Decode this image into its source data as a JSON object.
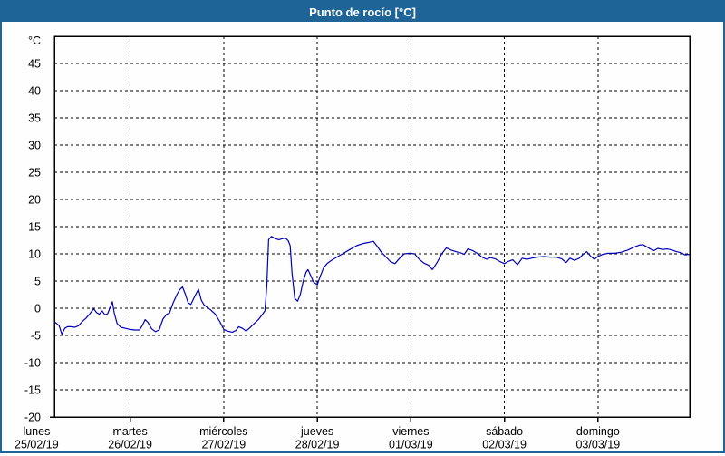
{
  "window": {
    "title": "Punto de rocío [°C]"
  },
  "colors": {
    "titlebar_bg": "#1e6496",
    "titlebar_text": "#ffffff",
    "outer_border": "#1e6496",
    "chart_bg": "#fdfefd",
    "plot_border": "#000000",
    "grid": "#000000",
    "line": "#0000bb",
    "label_text": "#000000"
  },
  "chart_data": {
    "type": "line",
    "title": "Punto de rocío [°C]",
    "y_unit_label": "°C",
    "ylabel": "",
    "xlabel": "",
    "ylim": [
      -20,
      50
    ],
    "y_gridline_step": 5,
    "y_tick_labels": [
      45,
      40,
      35,
      30,
      25,
      20,
      15,
      10,
      5,
      0,
      -5,
      -10,
      -15,
      -20
    ],
    "grid": "dashed",
    "legend_position": "none",
    "xlim_days": [
      0.19,
      6.98
    ],
    "x_gridlines_days": [
      1,
      2,
      3,
      4,
      5,
      6
    ],
    "x_day_labels": [
      {
        "name": "lunes",
        "date": "25/02/19",
        "day": 0
      },
      {
        "name": "martes",
        "date": "26/02/19",
        "day": 1
      },
      {
        "name": "miércoles",
        "date": "27/02/19",
        "day": 2
      },
      {
        "name": "jueves",
        "date": "28/02/19",
        "day": 3
      },
      {
        "name": "viernes",
        "date": "01/03/19",
        "day": 4
      },
      {
        "name": "sábado",
        "date": "02/03/19",
        "day": 5
      },
      {
        "name": "domingo",
        "date": "03/03/19",
        "day": 6
      }
    ],
    "series": [
      {
        "name": "Punto de rocío",
        "color": "#0000bb",
        "points": [
          [
            0.2,
            -2.6
          ],
          [
            0.24,
            -3.2
          ],
          [
            0.27,
            -4.8
          ],
          [
            0.3,
            -3.7
          ],
          [
            0.33,
            -3.4
          ],
          [
            0.37,
            -3.4
          ],
          [
            0.41,
            -3.5
          ],
          [
            0.45,
            -3.2
          ],
          [
            0.49,
            -2.4
          ],
          [
            0.53,
            -1.8
          ],
          [
            0.57,
            -1.0
          ],
          [
            0.61,
            -0.1
          ],
          [
            0.64,
            -0.8
          ],
          [
            0.67,
            -1.1
          ],
          [
            0.7,
            -0.5
          ],
          [
            0.73,
            -1.2
          ],
          [
            0.76,
            -1.0
          ],
          [
            0.79,
            0.3
          ],
          [
            0.81,
            1.2
          ],
          [
            0.83,
            -0.9
          ],
          [
            0.86,
            -2.8
          ],
          [
            0.9,
            -3.5
          ],
          [
            0.95,
            -3.7
          ],
          [
            1.0,
            -3.9
          ],
          [
            1.05,
            -4.0
          ],
          [
            1.1,
            -4.0
          ],
          [
            1.13,
            -3.2
          ],
          [
            1.16,
            -2.1
          ],
          [
            1.19,
            -2.6
          ],
          [
            1.23,
            -3.8
          ],
          [
            1.27,
            -4.3
          ],
          [
            1.31,
            -4.0
          ],
          [
            1.35,
            -2.0
          ],
          [
            1.39,
            -1.1
          ],
          [
            1.42,
            -0.9
          ],
          [
            1.46,
            1.0
          ],
          [
            1.5,
            2.5
          ],
          [
            1.53,
            3.4
          ],
          [
            1.56,
            3.9
          ],
          [
            1.59,
            2.6
          ],
          [
            1.62,
            1.0
          ],
          [
            1.65,
            0.7
          ],
          [
            1.69,
            2.2
          ],
          [
            1.73,
            3.5
          ],
          [
            1.76,
            1.5
          ],
          [
            1.79,
            0.6
          ],
          [
            1.82,
            0.2
          ],
          [
            1.86,
            -0.3
          ],
          [
            1.91,
            -1.1
          ],
          [
            1.96,
            -2.5
          ],
          [
            2.0,
            -3.9
          ],
          [
            2.04,
            -4.2
          ],
          [
            2.09,
            -4.4
          ],
          [
            2.13,
            -4.1
          ],
          [
            2.16,
            -3.4
          ],
          [
            2.2,
            -3.7
          ],
          [
            2.24,
            -4.2
          ],
          [
            2.28,
            -3.6
          ],
          [
            2.32,
            -2.9
          ],
          [
            2.37,
            -2.1
          ],
          [
            2.41,
            -1.2
          ],
          [
            2.44,
            -0.5
          ],
          [
            2.46,
            4.0
          ],
          [
            2.48,
            12.6
          ],
          [
            2.51,
            13.2
          ],
          [
            2.55,
            12.8
          ],
          [
            2.59,
            12.6
          ],
          [
            2.63,
            12.8
          ],
          [
            2.66,
            12.9
          ],
          [
            2.69,
            12.4
          ],
          [
            2.71,
            11.5
          ],
          [
            2.73,
            6.5
          ],
          [
            2.76,
            1.8
          ],
          [
            2.79,
            1.3
          ],
          [
            2.82,
            2.6
          ],
          [
            2.85,
            5.0
          ],
          [
            2.88,
            6.6
          ],
          [
            2.9,
            7.1
          ],
          [
            2.93,
            6.0
          ],
          [
            2.96,
            4.8
          ],
          [
            3.0,
            4.3
          ],
          [
            3.03,
            5.8
          ],
          [
            3.07,
            7.5
          ],
          [
            3.11,
            8.3
          ],
          [
            3.16,
            8.9
          ],
          [
            3.22,
            9.5
          ],
          [
            3.28,
            10.1
          ],
          [
            3.35,
            10.8
          ],
          [
            3.42,
            11.5
          ],
          [
            3.49,
            11.9
          ],
          [
            3.55,
            12.1
          ],
          [
            3.6,
            12.3
          ],
          [
            3.64,
            11.4
          ],
          [
            3.68,
            10.4
          ],
          [
            3.73,
            9.5
          ],
          [
            3.78,
            8.6
          ],
          [
            3.83,
            8.2
          ],
          [
            3.88,
            9.2
          ],
          [
            3.93,
            10.0
          ],
          [
            3.99,
            10.1
          ],
          [
            4.04,
            10.0
          ],
          [
            4.09,
            9.0
          ],
          [
            4.14,
            8.3
          ],
          [
            4.19,
            7.9
          ],
          [
            4.23,
            7.1
          ],
          [
            4.28,
            8.4
          ],
          [
            4.33,
            10.0
          ],
          [
            4.38,
            11.1
          ],
          [
            4.43,
            10.7
          ],
          [
            4.48,
            10.4
          ],
          [
            4.53,
            10.2
          ],
          [
            4.57,
            9.9
          ],
          [
            4.61,
            10.9
          ],
          [
            4.66,
            10.6
          ],
          [
            4.71,
            10.1
          ],
          [
            4.76,
            9.4
          ],
          [
            4.81,
            9.0
          ],
          [
            4.85,
            9.3
          ],
          [
            4.9,
            9.1
          ],
          [
            4.95,
            8.6
          ],
          [
            5.0,
            8.2
          ],
          [
            5.04,
            8.6
          ],
          [
            5.09,
            8.9
          ],
          [
            5.14,
            8.0
          ],
          [
            5.19,
            9.2
          ],
          [
            5.24,
            9.0
          ],
          [
            5.29,
            9.2
          ],
          [
            5.35,
            9.4
          ],
          [
            5.42,
            9.5
          ],
          [
            5.49,
            9.4
          ],
          [
            5.55,
            9.4
          ],
          [
            5.61,
            9.1
          ],
          [
            5.66,
            8.4
          ],
          [
            5.7,
            9.2
          ],
          [
            5.75,
            8.8
          ],
          [
            5.8,
            9.2
          ],
          [
            5.84,
            9.9
          ],
          [
            5.88,
            10.4
          ],
          [
            5.92,
            9.6
          ],
          [
            5.96,
            9.0
          ],
          [
            6.0,
            9.5
          ],
          [
            6.05,
            9.9
          ],
          [
            6.11,
            10.1
          ],
          [
            6.18,
            10.1
          ],
          [
            6.25,
            10.3
          ],
          [
            6.32,
            10.7
          ],
          [
            6.38,
            11.2
          ],
          [
            6.44,
            11.6
          ],
          [
            6.48,
            11.7
          ],
          [
            6.52,
            11.3
          ],
          [
            6.56,
            10.9
          ],
          [
            6.6,
            10.6
          ],
          [
            6.64,
            11.0
          ],
          [
            6.69,
            10.8
          ],
          [
            6.74,
            10.9
          ],
          [
            6.79,
            10.7
          ],
          [
            6.84,
            10.4
          ],
          [
            6.89,
            10.2
          ],
          [
            6.93,
            9.8
          ],
          [
            6.97,
            9.9
          ]
        ]
      }
    ]
  }
}
